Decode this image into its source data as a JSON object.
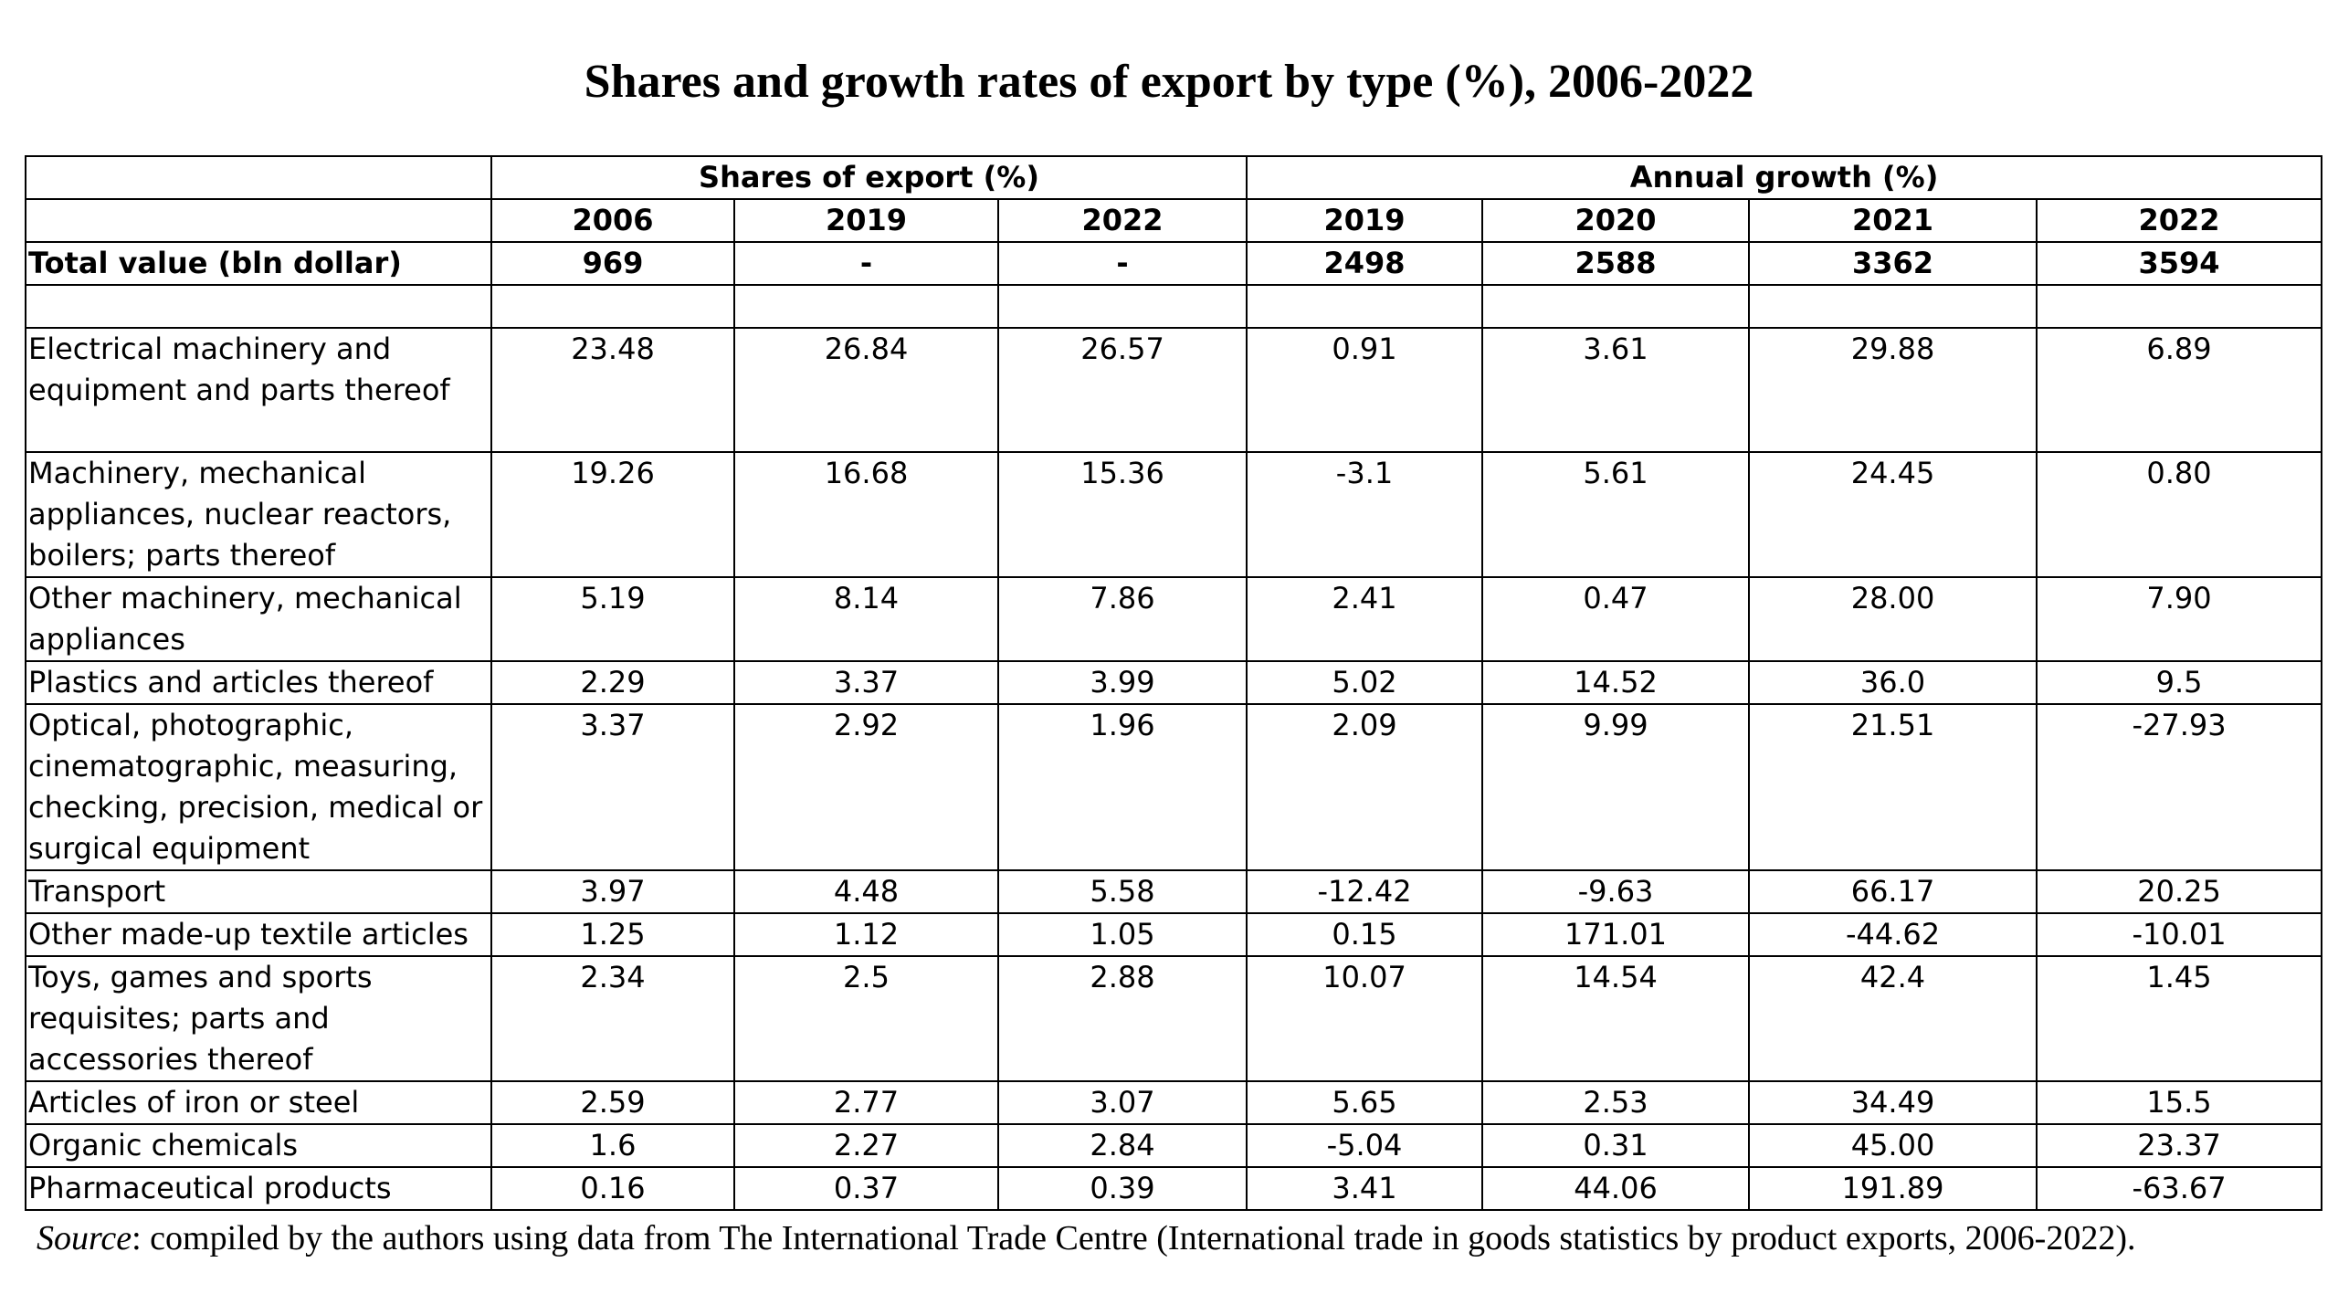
{
  "title": "Shares and growth rates of export by type (%), 2006-2022",
  "groups": {
    "shares": "Shares of export (%)",
    "growth": "Annual growth (%)"
  },
  "years": [
    "2006",
    "2019",
    "2022",
    "2019",
    "2020",
    "2021",
    "2022"
  ],
  "total": {
    "label": "Total value (bln dollar)",
    "values": [
      "969",
      "-",
      "-",
      "2498",
      "2588",
      "3362",
      "3594"
    ]
  },
  "rows": [
    {
      "label": "Electrical machinery and equipment and parts thereof",
      "values": [
        "23.48",
        "26.84",
        "26.57",
        "0.91",
        "3.61",
        "29.88",
        "6.89"
      ]
    },
    {
      "label": "Machinery, mechanical appliances, nuclear reactors, boilers; parts thereof",
      "values": [
        "19.26",
        "16.68",
        "15.36",
        "-3.1",
        "5.61",
        "24.45",
        "0.80"
      ]
    },
    {
      "label": "Other machinery, mechanical appliances",
      "values": [
        "5.19",
        "8.14",
        "7.86",
        "2.41",
        "0.47",
        "28.00",
        "7.90"
      ]
    },
    {
      "label": "Plastics and articles thereof",
      "values": [
        "2.29",
        "3.37",
        "3.99",
        "5.02",
        "14.52",
        "36.0",
        "9.5"
      ]
    },
    {
      "label": "Optical, photographic, cinematographic, measuring, checking, precision, medical or surgical equipment",
      "values": [
        "3.37",
        "2.92",
        "1.96",
        "2.09",
        "9.99",
        "21.51",
        "-27.93"
      ]
    },
    {
      "label": "Transport",
      "values": [
        "3.97",
        "4.48",
        "5.58",
        "-12.42",
        "-9.63",
        "66.17",
        "20.25"
      ]
    },
    {
      "label": "Other made-up textile articles",
      "values": [
        "1.25",
        "1.12",
        "1.05",
        "0.15",
        "171.01",
        "-44.62",
        "-10.01"
      ]
    },
    {
      "label": "Toys, games and sports requisites; parts and accessories thereof",
      "values": [
        "2.34",
        "2.5",
        "2.88",
        "10.07",
        "14.54",
        "42.4",
        "1.45"
      ]
    },
    {
      "label": "Articles of iron or steel",
      "values": [
        "2.59",
        "2.77",
        "3.07",
        "5.65",
        "2.53",
        "34.49",
        "15.5"
      ]
    },
    {
      "label": "Organic chemicals",
      "values": [
        "1.6",
        "2.27",
        "2.84",
        "-5.04",
        "0.31",
        "45.00",
        "23.37"
      ]
    },
    {
      "label": "Pharmaceutical products",
      "values": [
        "0.16",
        "0.37",
        "0.39",
        "3.41",
        "44.06",
        "191.89",
        "-63.67"
      ]
    }
  ],
  "source": {
    "prefix": "Source",
    "text": ": compiled by the authors using data from The International Trade Centre (International trade in goods statistics by product exports, 2006-2022)."
  }
}
